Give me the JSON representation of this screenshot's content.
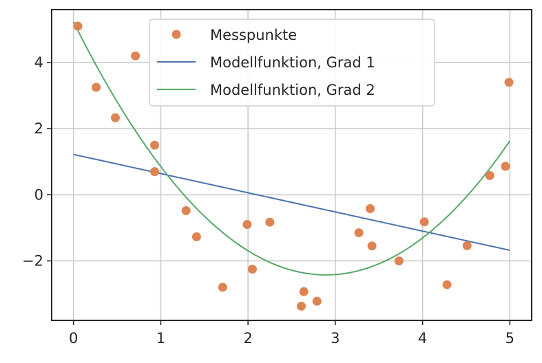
{
  "chart_data": {
    "type": "scatter",
    "title": "",
    "xlabel": "",
    "ylabel": "",
    "xlim": [
      -0.25,
      5.25
    ],
    "ylim": [
      -3.8,
      5.6
    ],
    "x_ticks": [
      0,
      1,
      2,
      3,
      4,
      5
    ],
    "y_ticks": [
      -2,
      0,
      2,
      4
    ],
    "x_tick_labels": [
      "0",
      "1",
      "2",
      "3",
      "4",
      "5"
    ],
    "y_tick_labels": [
      "−2",
      "0",
      "2",
      "4"
    ],
    "grid": true,
    "legend_position": "top-center",
    "series": [
      {
        "name": "Messpunkte",
        "kind": "scatter",
        "color": "#dd8452",
        "x": [
          0.05,
          0.26,
          0.48,
          0.71,
          0.93,
          0.93,
          1.29,
          1.41,
          1.71,
          1.99,
          2.05,
          2.25,
          2.61,
          2.64,
          2.79,
          3.27,
          3.4,
          3.42,
          3.73,
          4.02,
          4.28,
          4.51,
          4.77,
          4.95,
          4.99
        ],
        "y": [
          5.1,
          3.25,
          2.33,
          4.2,
          1.5,
          0.7,
          -0.48,
          -1.27,
          -2.8,
          -0.9,
          -2.25,
          -0.83,
          -3.37,
          -2.93,
          -3.22,
          -1.15,
          -0.42,
          -1.55,
          -2.0,
          -0.82,
          -2.72,
          -1.54,
          0.58,
          0.86,
          3.4
        ]
      },
      {
        "name": "Modellfunktion, Grad 1",
        "kind": "line",
        "color": "#4c72b0",
        "equation": {
          "degree": 1,
          "coefficients": [
            1.22,
            -0.58
          ]
        },
        "x_range": [
          0,
          5
        ]
      },
      {
        "name": "Modellfunktion, Grad 2",
        "kind": "line",
        "color": "#55a868",
        "equation": {
          "degree": 2,
          "coefficients": [
            5.23,
            -5.29,
            0.914
          ]
        },
        "x_range": [
          0,
          5
        ]
      }
    ]
  }
}
